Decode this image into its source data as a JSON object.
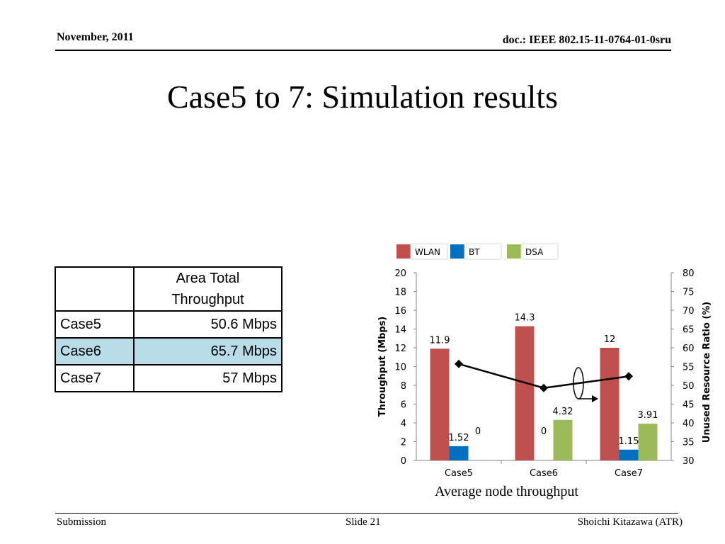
{
  "header": {
    "date": "November, 2011",
    "doc_id": "doc.: IEEE 802.15-11-0764-01-0sru"
  },
  "title": "Case5 to 7: Simulation results",
  "table": {
    "header": [
      "",
      "Area Total Throughput"
    ],
    "rows": [
      {
        "case": "Case5",
        "value": "50.6 Mbps"
      },
      {
        "case": "Case6",
        "value": "65.7 Mbps"
      },
      {
        "case": "Case7",
        "value": "57 Mbps"
      }
    ],
    "highlight_color": "#b8dde8"
  },
  "chart_data": {
    "type": "bar",
    "categories": [
      "Case5",
      "Case6",
      "Case7"
    ],
    "series": [
      {
        "name": "WLAN",
        "color": "#c0504d",
        "values": [
          11.9,
          14.3,
          12
        ],
        "labels": [
          "11.9",
          "14.3",
          "12"
        ]
      },
      {
        "name": "BT",
        "color": "#0070c0",
        "values": [
          1.52,
          0,
          1.15
        ],
        "labels": [
          "1.52",
          "0",
          "1.15"
        ]
      },
      {
        "name": "DSA",
        "color": "#9bbb59",
        "values": [
          0,
          4.32,
          3.91
        ],
        "labels": [
          "0",
          "4.32",
          "3.91"
        ]
      }
    ],
    "line_series": {
      "values": [
        55.7,
        49.3,
        52.4
      ],
      "color": "#000000",
      "axis": "right"
    },
    "ylabel": "Throughput  (Mbps)",
    "ylim": [
      0,
      20
    ],
    "yticks": [
      "0",
      "2",
      "4",
      "6",
      "8",
      "10",
      "12",
      "14",
      "16",
      "18",
      "20"
    ],
    "y2label": "Unused  Resource Ratio (%)",
    "y2lim": [
      30,
      80
    ],
    "y2ticks": [
      "30",
      "35",
      "40",
      "45",
      "50",
      "55",
      "60",
      "65",
      "70",
      "75",
      "80"
    ],
    "legend": "top",
    "grid": false
  },
  "caption": "Average node throughput",
  "footer": {
    "left": "Submission",
    "center": "Slide 21",
    "right": "Shoichi Kitazawa (ATR)"
  }
}
